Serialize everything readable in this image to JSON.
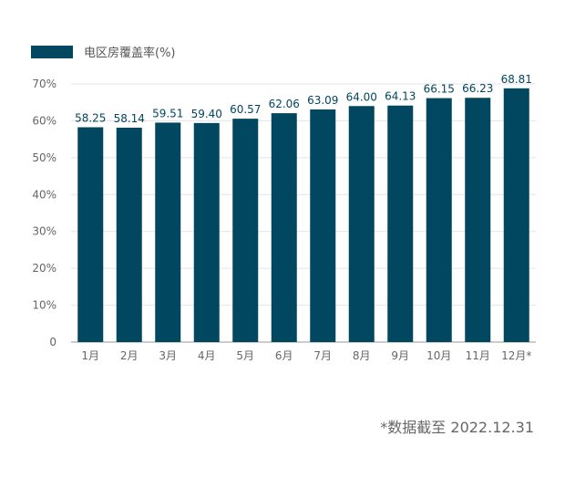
{
  "chart_data": {
    "type": "bar",
    "legend": "电区房覆盖率(%)",
    "categories": [
      "1月",
      "2月",
      "3月",
      "4月",
      "5月",
      "6月",
      "7月",
      "8月",
      "9月",
      "10月",
      "11月",
      "12月*"
    ],
    "values": [
      58.25,
      58.14,
      59.51,
      59.4,
      60.57,
      62.06,
      63.09,
      64.0,
      64.13,
      66.15,
      66.23,
      68.81
    ],
    "value_labels": [
      "58.25",
      "58.14",
      "59.51",
      "59.40",
      "60.57",
      "62.06",
      "63.09",
      "64.00",
      "64.13",
      "66.15",
      "66.23",
      "68.81"
    ],
    "yticks": [
      "0",
      "10%",
      "20%",
      "30%",
      "40%",
      "50%",
      "60%",
      "70%"
    ],
    "ylim": [
      0,
      70
    ],
    "footnote": "*数据截至 2022.12.31",
    "color": "#00475f"
  }
}
